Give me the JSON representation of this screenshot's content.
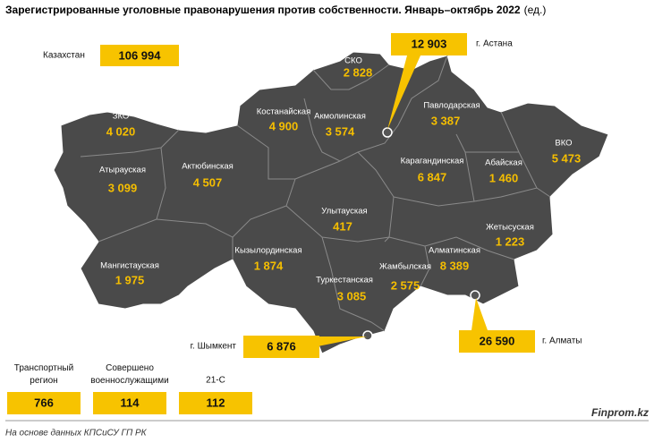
{
  "header": {
    "title": "Зарегистрированные уголовные правонарушения против собственности. Январь–октябрь 2022",
    "unit": "(ед.)"
  },
  "total": {
    "label": "Казахстан",
    "value": "106 994"
  },
  "regions": [
    {
      "name": "ЗКО",
      "value": "4 020"
    },
    {
      "name": "Атырауская",
      "value": "3 099"
    },
    {
      "name": "Актюбинская",
      "value": "4 507"
    },
    {
      "name": "Мангистауская",
      "value": "1 975"
    },
    {
      "name": "Костанайская",
      "value": "4 900"
    },
    {
      "name": "СКО",
      "value": "2 828"
    },
    {
      "name": "Акмолинская",
      "value": "3 574"
    },
    {
      "name": "Павлодарская",
      "value": "3 387"
    },
    {
      "name": "ВКО",
      "value": "5 473"
    },
    {
      "name": "Карагандинская",
      "value": "6 847"
    },
    {
      "name": "Абайская",
      "value": "1 460"
    },
    {
      "name": "Улытауская",
      "value": "417"
    },
    {
      "name": "Кызылординская",
      "value": "1 874"
    },
    {
      "name": "Жетысуская",
      "value": "1 223"
    },
    {
      "name": "Алматинская",
      "value": "8 389"
    },
    {
      "name": "Туркестанская",
      "value": "3 085"
    },
    {
      "name": "Жамбылская",
      "value": "2 575"
    }
  ],
  "cities": [
    {
      "name": "г. Астана",
      "value": "12 903"
    },
    {
      "name": "г. Шымкент",
      "value": "6 876"
    },
    {
      "name": "г. Алматы",
      "value": "26 590"
    }
  ],
  "other": [
    {
      "name": "Транспортный регион",
      "value": "766"
    },
    {
      "name": "Совершено военнослужащими",
      "value": "114"
    },
    {
      "name": "21-С",
      "value": "112"
    }
  ],
  "footer": {
    "source": "На основе данных КПСиСУ ГП РК",
    "brand": "Finprom.kz"
  }
}
